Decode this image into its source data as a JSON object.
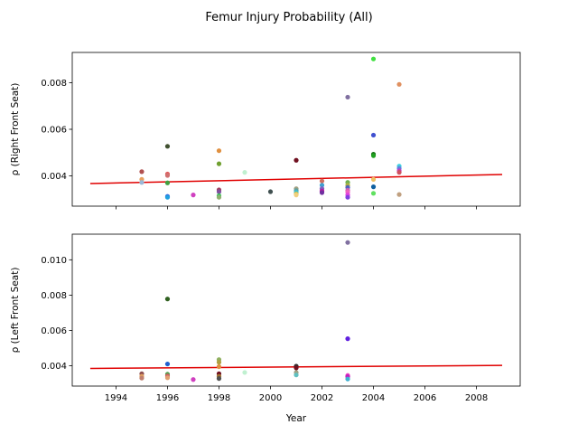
{
  "figure": {
    "title": "Femur Injury Probability (All)",
    "xlabel": "Year"
  },
  "chart_data": [
    {
      "type": "scatter",
      "title": "Femur Injury Probability (All)",
      "ylabel": "ρ (Right Front Seat)",
      "xlim": [
        1992.3,
        2009.7
      ],
      "ylim": [
        0.0027,
        0.0093
      ],
      "xticks": [
        1994,
        1996,
        1998,
        2000,
        2002,
        2004,
        2006,
        2008
      ],
      "xtick_labels_shown": false,
      "yticks": [
        0.004,
        0.006,
        0.008
      ],
      "ytick_labels": [
        "0.004",
        "0.006",
        "0.008"
      ],
      "trend": {
        "x": [
          1993,
          2009
        ],
        "y": [
          0.00367,
          0.00406
        ],
        "color": "#e00000"
      },
      "points": [
        {
          "x": 1995,
          "y": 0.00418,
          "color": "#b05050"
        },
        {
          "x": 1995,
          "y": 0.00385,
          "color": "#e8a060"
        },
        {
          "x": 1995,
          "y": 0.00372,
          "color": "#9ab8d8"
        },
        {
          "x": 1996,
          "y": 0.00527,
          "color": "#405030"
        },
        {
          "x": 1996,
          "y": 0.00408,
          "color": "#e05a5a"
        },
        {
          "x": 1996,
          "y": 0.00402,
          "color": "#d07070"
        },
        {
          "x": 1996,
          "y": 0.0037,
          "color": "#40a040"
        },
        {
          "x": 1996,
          "y": 0.00312,
          "color": "#3060e0"
        },
        {
          "x": 1996,
          "y": 0.00308,
          "color": "#20a0e0"
        },
        {
          "x": 1997,
          "y": 0.00318,
          "color": "#d040c0"
        },
        {
          "x": 1998,
          "y": 0.00508,
          "color": "#e09040"
        },
        {
          "x": 1998,
          "y": 0.00452,
          "color": "#70a030"
        },
        {
          "x": 1998,
          "y": 0.0034,
          "color": "#a04060"
        },
        {
          "x": 1998,
          "y": 0.00332,
          "color": "#8050a0"
        },
        {
          "x": 1998,
          "y": 0.00315,
          "color": "#40c060"
        },
        {
          "x": 1998,
          "y": 0.00308,
          "color": "#90b070"
        },
        {
          "x": 1999,
          "y": 0.00415,
          "color": "#c0f0d0"
        },
        {
          "x": 2000,
          "y": 0.00332,
          "color": "#405050"
        },
        {
          "x": 2001,
          "y": 0.00467,
          "color": "#701020"
        },
        {
          "x": 2001,
          "y": 0.00345,
          "color": "#a0a080"
        },
        {
          "x": 2001,
          "y": 0.00337,
          "color": "#60a0a0"
        },
        {
          "x": 2001,
          "y": 0.0033,
          "color": "#40c0d0"
        },
        {
          "x": 2001,
          "y": 0.00322,
          "color": "#e0c040"
        },
        {
          "x": 2001,
          "y": 0.00318,
          "color": "#f0d080"
        },
        {
          "x": 2002,
          "y": 0.00378,
          "color": "#d07060"
        },
        {
          "x": 2002,
          "y": 0.0036,
          "color": "#40a0d0"
        },
        {
          "x": 2002,
          "y": 0.00345,
          "color": "#8060c0"
        },
        {
          "x": 2002,
          "y": 0.00335,
          "color": "#b020a0"
        },
        {
          "x": 2002,
          "y": 0.00328,
          "color": "#7030a0"
        },
        {
          "x": 2003,
          "y": 0.00738,
          "color": "#8070a0"
        },
        {
          "x": 2003,
          "y": 0.00372,
          "color": "#70b050"
        },
        {
          "x": 2003,
          "y": 0.0036,
          "color": "#b0b040"
        },
        {
          "x": 2003,
          "y": 0.0035,
          "color": "#5060c0"
        },
        {
          "x": 2003,
          "y": 0.00338,
          "color": "#d060b0"
        },
        {
          "x": 2003,
          "y": 0.0033,
          "color": "#f060c0"
        },
        {
          "x": 2003,
          "y": 0.00318,
          "color": "#e040e0"
        },
        {
          "x": 2003,
          "y": 0.00308,
          "color": "#8040e0"
        },
        {
          "x": 2004,
          "y": 0.00902,
          "color": "#40e040"
        },
        {
          "x": 2004,
          "y": 0.00575,
          "color": "#4050d0"
        },
        {
          "x": 2004,
          "y": 0.00493,
          "color": "#107010"
        },
        {
          "x": 2004,
          "y": 0.00487,
          "color": "#20a020"
        },
        {
          "x": 2004,
          "y": 0.00385,
          "color": "#f0c060"
        },
        {
          "x": 2004,
          "y": 0.00353,
          "color": "#1060a0"
        },
        {
          "x": 2004,
          "y": 0.00325,
          "color": "#60e060"
        },
        {
          "x": 2005,
          "y": 0.00793,
          "color": "#e09060"
        },
        {
          "x": 2005,
          "y": 0.00442,
          "color": "#40d0e0"
        },
        {
          "x": 2005,
          "y": 0.00432,
          "color": "#6080e0"
        },
        {
          "x": 2005,
          "y": 0.00422,
          "color": "#c040c0"
        },
        {
          "x": 2005,
          "y": 0.00415,
          "color": "#d05060"
        },
        {
          "x": 2005,
          "y": 0.0032,
          "color": "#c0a080"
        }
      ]
    },
    {
      "type": "scatter",
      "ylabel": "ρ (Left Front Seat)",
      "xlabel": "Year",
      "xlim": [
        1992.3,
        2009.7
      ],
      "ylim": [
        0.00285,
        0.01145
      ],
      "xticks": [
        1994,
        1996,
        1998,
        2000,
        2002,
        2004,
        2006,
        2008
      ],
      "xtick_labels": [
        "1994",
        "1996",
        "1998",
        "2000",
        "2002",
        "2004",
        "2006",
        "2008"
      ],
      "yticks": [
        0.004,
        0.006,
        0.008,
        0.01
      ],
      "ytick_labels": [
        "0.004",
        "0.006",
        "0.008",
        "0.010"
      ],
      "trend": {
        "x": [
          1993,
          2009
        ],
        "y": [
          0.00385,
          0.00402
        ],
        "color": "#e00000"
      },
      "points": [
        {
          "x": 1995,
          "y": 0.00355,
          "color": "#905050"
        },
        {
          "x": 1995,
          "y": 0.0034,
          "color": "#e0a060"
        },
        {
          "x": 1995,
          "y": 0.0033,
          "color": "#c08070"
        },
        {
          "x": 1996,
          "y": 0.00778,
          "color": "#306020"
        },
        {
          "x": 1996,
          "y": 0.0041,
          "color": "#2060d0"
        },
        {
          "x": 1996,
          "y": 0.00352,
          "color": "#50a050"
        },
        {
          "x": 1996,
          "y": 0.00342,
          "color": "#d06060"
        },
        {
          "x": 1996,
          "y": 0.00332,
          "color": "#e0a070"
        },
        {
          "x": 1997,
          "y": 0.00322,
          "color": "#d040c0"
        },
        {
          "x": 1998,
          "y": 0.00435,
          "color": "#90b060"
        },
        {
          "x": 1998,
          "y": 0.0042,
          "color": "#b0a040"
        },
        {
          "x": 1998,
          "y": 0.00395,
          "color": "#e09040"
        },
        {
          "x": 1998,
          "y": 0.00355,
          "color": "#701020"
        },
        {
          "x": 1998,
          "y": 0.0034,
          "color": "#a07030"
        },
        {
          "x": 1998,
          "y": 0.00328,
          "color": "#505050"
        },
        {
          "x": 1999,
          "y": 0.00362,
          "color": "#c0f0d0"
        },
        {
          "x": 2001,
          "y": 0.00398,
          "color": "#303030"
        },
        {
          "x": 2001,
          "y": 0.00388,
          "color": "#701020"
        },
        {
          "x": 2001,
          "y": 0.00362,
          "color": "#a0a080"
        },
        {
          "x": 2001,
          "y": 0.00348,
          "color": "#60c0c0"
        },
        {
          "x": 2003,
          "y": 0.01098,
          "color": "#8070a0"
        },
        {
          "x": 2003,
          "y": 0.00553,
          "color": "#6020e0"
        },
        {
          "x": 2003,
          "y": 0.00345,
          "color": "#f040c0"
        },
        {
          "x": 2003,
          "y": 0.00338,
          "color": "#c020c0"
        },
        {
          "x": 2003,
          "y": 0.00325,
          "color": "#40b0d0"
        }
      ]
    }
  ]
}
